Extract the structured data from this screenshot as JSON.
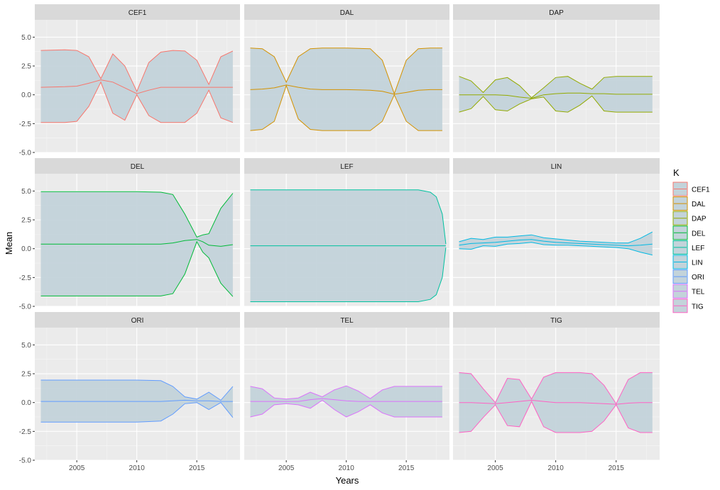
{
  "chart_data": {
    "type": "area",
    "xlabel": "Years",
    "ylabel": "Mean",
    "xlim": [
      2001.5,
      2018.6
    ],
    "ylim": [
      -5.0,
      6.5
    ],
    "x_ticks": [
      2005,
      2010,
      2015
    ],
    "y_ticks": [
      -5.0,
      -2.5,
      0.0,
      2.5,
      5.0
    ],
    "y_tick_labels": [
      "-5.0",
      "-2.5",
      "0.0",
      "2.5",
      "5.0"
    ],
    "grid": true,
    "facets": "3x3",
    "legend": {
      "title": "K",
      "position": "right"
    },
    "ribbon_fill": "#c3d3da",
    "panels": [
      {
        "name": "CEF1",
        "color": "#F8766D",
        "x": [
          2002,
          2004,
          2005,
          2006,
          2007,
          2008,
          2009,
          2010,
          2011,
          2012,
          2013,
          2014,
          2015,
          2016,
          2017,
          2018
        ],
        "mean": [
          0.65,
          0.7,
          0.75,
          1.0,
          1.3,
          1.1,
          0.6,
          0.1,
          0.4,
          0.65,
          0.65,
          0.65,
          0.65,
          0.65,
          0.65,
          0.65
        ],
        "upper": [
          3.85,
          3.9,
          3.85,
          3.3,
          1.4,
          3.55,
          2.5,
          0.3,
          2.8,
          3.7,
          3.85,
          3.8,
          3.0,
          0.9,
          3.3,
          3.8
        ],
        "lower": [
          -2.4,
          -2.4,
          -2.3,
          -1.0,
          1.1,
          -1.6,
          -2.2,
          0.0,
          -1.8,
          -2.4,
          -2.4,
          -2.4,
          -1.6,
          0.4,
          -2.0,
          -2.4
        ]
      },
      {
        "name": "DAL",
        "color": "#D39200",
        "x": [
          2002,
          2003,
          2004,
          2005,
          2006,
          2007,
          2008,
          2010,
          2012,
          2013,
          2014,
          2015,
          2016,
          2017,
          2018
        ],
        "mean": [
          0.45,
          0.5,
          0.6,
          0.85,
          0.65,
          0.5,
          0.45,
          0.45,
          0.4,
          0.3,
          0.05,
          0.2,
          0.4,
          0.45,
          0.45
        ],
        "upper": [
          4.05,
          4.0,
          3.3,
          1.1,
          3.3,
          4.0,
          4.05,
          4.05,
          4.0,
          3.0,
          0.1,
          3.0,
          4.0,
          4.05,
          4.05
        ],
        "lower": [
          -3.1,
          -3.0,
          -2.3,
          0.8,
          -2.1,
          -3.0,
          -3.1,
          -3.1,
          -3.1,
          -2.3,
          0.0,
          -2.3,
          -3.1,
          -3.1,
          -3.1
        ]
      },
      {
        "name": "DAP",
        "color": "#93AA00",
        "x": [
          2002,
          2003,
          2004,
          2005,
          2006,
          2007,
          2008,
          2009,
          2010,
          2011,
          2012,
          2013,
          2014,
          2015,
          2016,
          2017,
          2018
        ],
        "mean": [
          0.0,
          0.0,
          0.0,
          0.0,
          -0.05,
          -0.2,
          -0.3,
          0.0,
          0.1,
          0.15,
          0.15,
          0.1,
          0.1,
          0.05,
          0.05,
          0.05,
          0.05
        ],
        "upper": [
          1.6,
          1.2,
          0.2,
          1.3,
          1.5,
          0.8,
          -0.25,
          0.6,
          1.5,
          1.6,
          1.0,
          0.5,
          1.5,
          1.6,
          1.6,
          1.6,
          1.6
        ],
        "lower": [
          -1.5,
          -1.2,
          -0.15,
          -1.3,
          -1.4,
          -0.8,
          -0.35,
          -0.2,
          -1.4,
          -1.5,
          -0.9,
          -0.1,
          -1.4,
          -1.5,
          -1.5,
          -1.5,
          -1.5
        ]
      },
      {
        "name": "DEL",
        "color": "#00BA38",
        "x": [
          2002,
          2005,
          2010,
          2012,
          2013,
          2014,
          2015,
          2015.5,
          2016,
          2017,
          2018
        ],
        "mean": [
          0.4,
          0.4,
          0.4,
          0.4,
          0.5,
          0.7,
          0.8,
          0.6,
          0.3,
          0.2,
          0.35
        ],
        "upper": [
          4.95,
          4.95,
          4.95,
          4.9,
          4.7,
          3.0,
          1.0,
          1.2,
          1.3,
          3.5,
          4.8
        ],
        "lower": [
          -4.1,
          -4.1,
          -4.1,
          -4.1,
          -3.9,
          -2.2,
          0.6,
          -0.3,
          -0.8,
          -3.0,
          -4.15
        ]
      },
      {
        "name": "LEF",
        "color": "#00C19F",
        "x": [
          2002,
          2006,
          2010,
          2014,
          2016,
          2017,
          2017.5,
          2018,
          2018.3
        ],
        "mean": [
          0.25,
          0.25,
          0.25,
          0.25,
          0.25,
          0.25,
          0.25,
          0.25,
          0.25
        ],
        "upper": [
          5.1,
          5.1,
          5.1,
          5.1,
          5.1,
          4.9,
          4.5,
          3.0,
          0.4
        ],
        "lower": [
          -4.6,
          -4.6,
          -4.6,
          -4.6,
          -4.6,
          -4.4,
          -4.0,
          -2.5,
          0.1
        ]
      },
      {
        "name": "LIN",
        "color": "#00B9E3",
        "x": [
          2002,
          2003,
          2004,
          2005,
          2006,
          2007,
          2008,
          2009,
          2010,
          2011,
          2012,
          2013,
          2014,
          2015,
          2016,
          2017,
          2018
        ],
        "mean": [
          0.3,
          0.45,
          0.5,
          0.55,
          0.65,
          0.75,
          0.8,
          0.65,
          0.55,
          0.5,
          0.45,
          0.4,
          0.35,
          0.3,
          0.25,
          0.3,
          0.4
        ],
        "upper": [
          0.6,
          0.9,
          0.8,
          1.0,
          1.0,
          1.1,
          1.2,
          0.95,
          0.85,
          0.75,
          0.65,
          0.6,
          0.55,
          0.5,
          0.5,
          0.9,
          1.45
        ],
        "lower": [
          0.0,
          -0.05,
          0.25,
          0.2,
          0.4,
          0.45,
          0.55,
          0.35,
          0.3,
          0.3,
          0.25,
          0.2,
          0.15,
          0.1,
          0.0,
          -0.3,
          -0.55
        ]
      },
      {
        "name": "ORI",
        "color": "#619CFF",
        "x": [
          2002,
          2005,
          2010,
          2012,
          2013,
          2014,
          2015,
          2016,
          2017,
          2018
        ],
        "mean": [
          0.1,
          0.1,
          0.1,
          0.1,
          0.15,
          0.2,
          0.15,
          0.15,
          0.1,
          0.1
        ],
        "upper": [
          1.95,
          1.95,
          1.95,
          1.9,
          1.4,
          0.5,
          0.3,
          0.9,
          0.2,
          1.4
        ],
        "lower": [
          -1.7,
          -1.7,
          -1.7,
          -1.6,
          -1.0,
          -0.1,
          0.0,
          -0.6,
          0.0,
          -1.3
        ]
      },
      {
        "name": "TEL",
        "color": "#DB72FB",
        "x": [
          2002,
          2003,
          2004,
          2005,
          2006,
          2007,
          2008,
          2009,
          2010,
          2011,
          2012,
          2013,
          2014,
          2015,
          2016,
          2017,
          2018
        ],
        "mean": [
          0.1,
          0.1,
          0.1,
          0.1,
          0.1,
          0.25,
          0.35,
          0.25,
          0.15,
          0.1,
          0.1,
          0.1,
          0.1,
          0.1,
          0.1,
          0.1,
          0.1
        ],
        "upper": [
          1.4,
          1.2,
          0.4,
          0.3,
          0.4,
          0.9,
          0.5,
          1.1,
          1.45,
          1.0,
          0.35,
          1.1,
          1.4,
          1.4,
          1.4,
          1.4,
          1.4
        ],
        "lower": [
          -1.25,
          -1.0,
          -0.2,
          -0.1,
          -0.2,
          -0.5,
          0.2,
          -0.6,
          -1.25,
          -0.8,
          -0.2,
          -0.9,
          -1.25,
          -1.25,
          -1.25,
          -1.25,
          -1.25
        ]
      },
      {
        "name": "TIG",
        "color": "#FF61C3",
        "x": [
          2002,
          2003,
          2004,
          2005,
          2006,
          2007,
          2008,
          2009,
          2010,
          2011,
          2012,
          2013,
          2014,
          2015,
          2016,
          2017,
          2018
        ],
        "mean": [
          0.0,
          0.0,
          -0.05,
          -0.1,
          0.0,
          0.1,
          0.2,
          0.1,
          0.0,
          0.0,
          0.0,
          -0.05,
          -0.1,
          -0.15,
          -0.05,
          0.0,
          0.0
        ],
        "upper": [
          2.6,
          2.5,
          1.2,
          0.0,
          2.1,
          2.0,
          0.3,
          2.2,
          2.6,
          2.6,
          2.6,
          2.5,
          1.5,
          -0.1,
          2.0,
          2.6,
          2.6
        ],
        "lower": [
          -2.6,
          -2.5,
          -1.3,
          -0.2,
          -2.0,
          -2.1,
          0.1,
          -2.1,
          -2.6,
          -2.6,
          -2.6,
          -2.5,
          -1.6,
          -0.2,
          -2.2,
          -2.6,
          -2.6
        ]
      }
    ]
  }
}
